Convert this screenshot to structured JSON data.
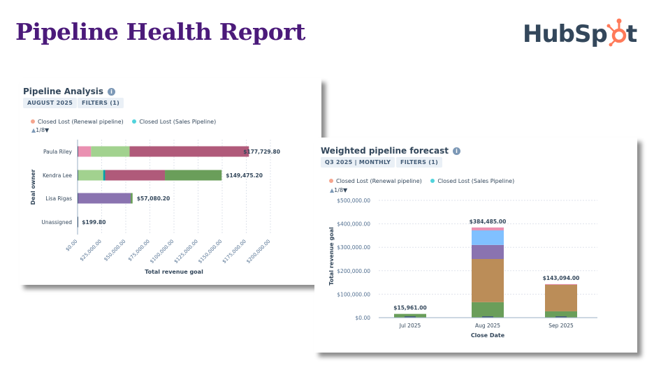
{
  "page": {
    "title": "Pipeline Health Report",
    "logo_text": "HubSpot"
  },
  "colors": {
    "title": "#4b1a7a",
    "renewal": "#f2a08a",
    "sales": "#4fd1d9"
  },
  "card1": {
    "title": "Pipeline Analysis",
    "chips": [
      "AUGUST 2025",
      "FILTERS (1)"
    ],
    "legend": [
      {
        "label": "Closed Lost (Renewal pipeline)",
        "color": "#f5a58e"
      },
      {
        "label": "Closed Lost (Sales Pipeline)",
        "color": "#51d3dc"
      }
    ],
    "pager": "1/8"
  },
  "card2": {
    "title": "Weighted pipeline forecast",
    "chips": [
      "Q3 2025 | MONTHLY",
      "FILTERS (1)"
    ],
    "legend": [
      {
        "label": "Closed Lost (Renewal pipeline)",
        "color": "#f5a58e"
      },
      {
        "label": "Closed Lost (Sales Pipeline)",
        "color": "#51d3dc"
      }
    ],
    "pager": "1/8"
  },
  "chart_data": [
    {
      "type": "bar",
      "orientation": "horizontal",
      "stacked": true,
      "xlabel": "Total revenue goal",
      "ylabel": "Deal owner",
      "xlim": [
        0,
        200000
      ],
      "xticks": [
        "$0.00",
        "$25,000.00",
        "$50,000.00",
        "$75,000.00",
        "$100,000.00",
        "$125,000.00",
        "$150,000.00",
        "$175,000.00",
        "$200,000.00"
      ],
      "grid": true,
      "categories": [
        "Paula Riley",
        "Kendra Lee",
        "Lisa Rigas",
        "Unassigned"
      ],
      "totals": [
        "$177,729.80",
        "$149,475.20",
        "$57,080.20",
        "$199.80"
      ],
      "segments": [
        [
          {
            "value": 600,
            "color": "#425b76"
          },
          {
            "value": 13400,
            "color": "#ea90b1"
          },
          {
            "value": 40000,
            "color": "#a2d28f"
          },
          {
            "value": 123729.8,
            "color": "#b05a7a"
          }
        ],
        [
          {
            "value": 600,
            "color": "#425b76"
          },
          {
            "value": 26000,
            "color": "#a2d28f"
          },
          {
            "value": 2000,
            "color": "#00a4a8"
          },
          {
            "value": 62000,
            "color": "#b05a7a"
          },
          {
            "value": 58875.2,
            "color": "#6a9e5a"
          }
        ],
        [
          {
            "value": 600,
            "color": "#425b76"
          },
          {
            "value": 54480.2,
            "color": "#8a73b0"
          },
          {
            "value": 2000,
            "color": "#6a9e5a"
          }
        ],
        [
          {
            "value": 199.8,
            "color": "#425b76"
          }
        ]
      ]
    },
    {
      "type": "bar",
      "orientation": "vertical",
      "stacked": true,
      "xlabel": "Close Date",
      "ylabel": "Total revenue goal",
      "ylim": [
        0,
        500000
      ],
      "yticks": [
        "$0.00",
        "$100,000.00",
        "$200,000.00",
        "$300,000.00",
        "$400,000.00",
        "$500,000.00"
      ],
      "grid": true,
      "categories": [
        "Jul 2025",
        "Aug 2025",
        "Sep 2025"
      ],
      "totals": [
        "$15,961.00",
        "$384,485.00",
        "$143,094.00"
      ],
      "segments": [
        [
          {
            "value": 15961,
            "color": "#6a9e5a"
          }
        ],
        [
          {
            "value": 66000,
            "color": "#6a9e5a"
          },
          {
            "value": 184000,
            "color": "#bb8d58"
          },
          {
            "value": 60000,
            "color": "#8a73b0"
          },
          {
            "value": 62000,
            "color": "#80c0ff"
          },
          {
            "value": 12485,
            "color": "#ea90b1"
          }
        ],
        [
          {
            "value": 27000,
            "color": "#6a9e5a"
          },
          {
            "value": 114094,
            "color": "#bb8d58"
          },
          {
            "value": 2000,
            "color": "#ea90b1"
          }
        ]
      ]
    }
  ]
}
